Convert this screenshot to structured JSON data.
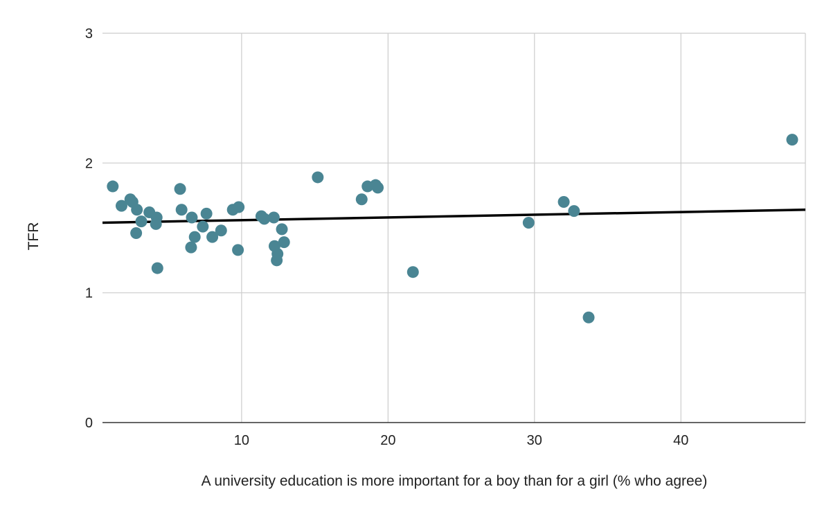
{
  "chart_data": {
    "type": "scatter",
    "xlabel": "A university education is more important for a boy than for a girl (% who agree)",
    "ylabel": "TFR",
    "xlim": [
      0.5,
      48.5
    ],
    "ylim": [
      0,
      3
    ],
    "x_ticks": [
      10,
      20,
      30,
      40
    ],
    "y_ticks": [
      0,
      1,
      2,
      3
    ],
    "grid": true,
    "legend": "none",
    "colors": {
      "points": "#4a8593",
      "trendline": "#000000",
      "grid": "#cccccc",
      "axis": "#333333"
    },
    "points": [
      {
        "x": 1.2,
        "y": 1.82
      },
      {
        "x": 1.8,
        "y": 1.67
      },
      {
        "x": 2.4,
        "y": 1.72
      },
      {
        "x": 2.55,
        "y": 1.7
      },
      {
        "x": 2.85,
        "y": 1.64
      },
      {
        "x": 2.8,
        "y": 1.46
      },
      {
        "x": 3.15,
        "y": 1.55
      },
      {
        "x": 3.7,
        "y": 1.62
      },
      {
        "x": 4.2,
        "y": 1.58
      },
      {
        "x": 4.15,
        "y": 1.53
      },
      {
        "x": 4.25,
        "y": 1.19
      },
      {
        "x": 5.8,
        "y": 1.8
      },
      {
        "x": 5.9,
        "y": 1.64
      },
      {
        "x": 6.55,
        "y": 1.35
      },
      {
        "x": 6.6,
        "y": 1.58
      },
      {
        "x": 6.8,
        "y": 1.43
      },
      {
        "x": 7.35,
        "y": 1.51
      },
      {
        "x": 7.6,
        "y": 1.61
      },
      {
        "x": 8.0,
        "y": 1.43
      },
      {
        "x": 8.6,
        "y": 1.48
      },
      {
        "x": 9.4,
        "y": 1.64
      },
      {
        "x": 9.8,
        "y": 1.66
      },
      {
        "x": 9.75,
        "y": 1.33
      },
      {
        "x": 11.35,
        "y": 1.59
      },
      {
        "x": 11.55,
        "y": 1.57
      },
      {
        "x": 12.2,
        "y": 1.58
      },
      {
        "x": 12.25,
        "y": 1.36
      },
      {
        "x": 12.45,
        "y": 1.3
      },
      {
        "x": 12.4,
        "y": 1.25
      },
      {
        "x": 12.75,
        "y": 1.49
      },
      {
        "x": 12.9,
        "y": 1.39
      },
      {
        "x": 15.2,
        "y": 1.89
      },
      {
        "x": 18.2,
        "y": 1.72
      },
      {
        "x": 18.6,
        "y": 1.82
      },
      {
        "x": 19.15,
        "y": 1.83
      },
      {
        "x": 19.3,
        "y": 1.81
      },
      {
        "x": 21.7,
        "y": 1.16
      },
      {
        "x": 29.6,
        "y": 1.54
      },
      {
        "x": 32.0,
        "y": 1.7
      },
      {
        "x": 32.7,
        "y": 1.63
      },
      {
        "x": 33.7,
        "y": 0.81
      },
      {
        "x": 47.6,
        "y": 2.18
      }
    ],
    "trendline": {
      "x": [
        0.5,
        48.5
      ],
      "y": [
        1.54,
        1.64
      ]
    }
  }
}
